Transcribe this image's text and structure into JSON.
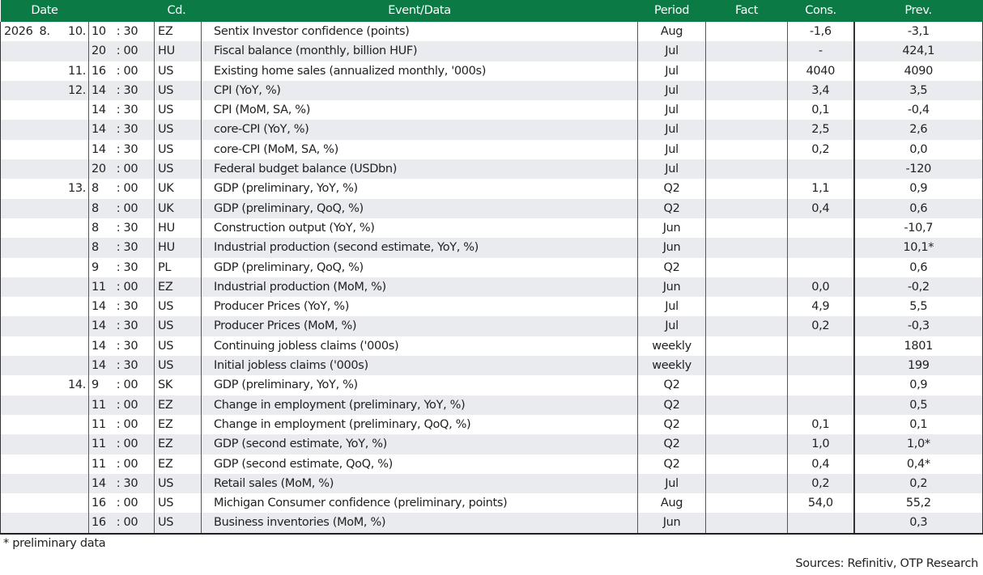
{
  "table": {
    "headers": {
      "date": "Date",
      "code": "Cd.",
      "event": "Event/Data",
      "period": "Period",
      "fact": "Fact",
      "cons": "Cons.",
      "prev": "Prev."
    },
    "rows": [
      {
        "year": "2026",
        "month": "8.",
        "day": "10.",
        "hour": "10",
        "sep": ":",
        "min": "30",
        "code": "EZ",
        "event": "Sentix Investor confidence (points)",
        "period": "Aug",
        "fact": "",
        "cons": "-1,6",
        "prev": "-3,1"
      },
      {
        "year": "",
        "month": "",
        "day": "",
        "hour": "20",
        "sep": ":",
        "min": "00",
        "code": "HU",
        "event": "Fiscal balance (monthly, billion HUF)",
        "period": "Jul",
        "fact": "",
        "cons": "-",
        "prev": "424,1"
      },
      {
        "year": "",
        "month": "",
        "day": "11.",
        "hour": "16",
        "sep": ":",
        "min": "00",
        "code": "US",
        "event": "Existing home sales (annualized monthly, '000s)",
        "period": "Jul",
        "fact": "",
        "cons": "4040",
        "prev": "4090"
      },
      {
        "year": "",
        "month": "",
        "day": "12.",
        "hour": "14",
        "sep": ":",
        "min": "30",
        "code": "US",
        "event": "CPI (YoY, %)",
        "period": "Jul",
        "fact": "",
        "cons": "3,4",
        "prev": "3,5"
      },
      {
        "year": "",
        "month": "",
        "day": "",
        "hour": "14",
        "sep": ":",
        "min": "30",
        "code": "US",
        "event": "CPI (MoM, SA, %)",
        "period": "Jul",
        "fact": "",
        "cons": "0,1",
        "prev": "-0,4"
      },
      {
        "year": "",
        "month": "",
        "day": "",
        "hour": "14",
        "sep": ":",
        "min": "30",
        "code": "US",
        "event": "core-CPI (YoY, %)",
        "period": "Jul",
        "fact": "",
        "cons": "2,5",
        "prev": "2,6"
      },
      {
        "year": "",
        "month": "",
        "day": "",
        "hour": "14",
        "sep": ":",
        "min": "30",
        "code": "US",
        "event": "core-CPI (MoM, SA, %)",
        "period": "Jul",
        "fact": "",
        "cons": "0,2",
        "prev": "0,0"
      },
      {
        "year": "",
        "month": "",
        "day": "",
        "hour": "20",
        "sep": ":",
        "min": "00",
        "code": "US",
        "event": "Federal budget balance (USDbn)",
        "period": "Jul",
        "fact": "",
        "cons": "",
        "prev": "-120"
      },
      {
        "year": "",
        "month": "",
        "day": "13.",
        "hour": "8",
        "sep": ":",
        "min": "00",
        "code": "UK",
        "event": "GDP (preliminary, YoY, %)",
        "period": "Q2",
        "fact": "",
        "cons": "1,1",
        "prev": "0,9"
      },
      {
        "year": "",
        "month": "",
        "day": "",
        "hour": "8",
        "sep": ":",
        "min": "00",
        "code": "UK",
        "event": "GDP (preliminary, QoQ, %)",
        "period": "Q2",
        "fact": "",
        "cons": "0,4",
        "prev": "0,6"
      },
      {
        "year": "",
        "month": "",
        "day": "",
        "hour": "8",
        "sep": ":",
        "min": "30",
        "code": "HU",
        "event": "Construction output (YoY, %)",
        "period": "Jun",
        "fact": "",
        "cons": "",
        "prev": "-10,7"
      },
      {
        "year": "",
        "month": "",
        "day": "",
        "hour": "8",
        "sep": ":",
        "min": "30",
        "code": "HU",
        "event": "Industrial production (second estimate, YoY, %)",
        "period": "Jun",
        "fact": "",
        "cons": "",
        "prev": "10,1*"
      },
      {
        "year": "",
        "month": "",
        "day": "",
        "hour": "9",
        "sep": ":",
        "min": "30",
        "code": "PL",
        "event": "GDP (preliminary, QoQ, %)",
        "period": "Q2",
        "fact": "",
        "cons": "",
        "prev": "0,6"
      },
      {
        "year": "",
        "month": "",
        "day": "",
        "hour": "11",
        "sep": ":",
        "min": "00",
        "code": "EZ",
        "event": "Industrial production (MoM, %)",
        "period": "Jun",
        "fact": "",
        "cons": "0,0",
        "prev": "-0,2"
      },
      {
        "year": "",
        "month": "",
        "day": "",
        "hour": "14",
        "sep": ":",
        "min": "30",
        "code": "US",
        "event": "Producer Prices (YoY, %)",
        "period": "Jul",
        "fact": "",
        "cons": "4,9",
        "prev": "5,5"
      },
      {
        "year": "",
        "month": "",
        "day": "",
        "hour": "14",
        "sep": ":",
        "min": "30",
        "code": "US",
        "event": "Producer Prices (MoM, %)",
        "period": "Jul",
        "fact": "",
        "cons": "0,2",
        "prev": "-0,3"
      },
      {
        "year": "",
        "month": "",
        "day": "",
        "hour": "14",
        "sep": ":",
        "min": "30",
        "code": "US",
        "event": "Continuing jobless claims ('000s)",
        "period": "weekly",
        "fact": "",
        "cons": "",
        "prev": "1801"
      },
      {
        "year": "",
        "month": "",
        "day": "",
        "hour": "14",
        "sep": ":",
        "min": "30",
        "code": "US",
        "event": "Initial jobless claims ('000s)",
        "period": "weekly",
        "fact": "",
        "cons": "",
        "prev": "199"
      },
      {
        "year": "",
        "month": "",
        "day": "14.",
        "hour": "9",
        "sep": ":",
        "min": "00",
        "code": "SK",
        "event": "GDP (preliminary, YoY, %)",
        "period": "Q2",
        "fact": "",
        "cons": "",
        "prev": "0,9"
      },
      {
        "year": "",
        "month": "",
        "day": "",
        "hour": "11",
        "sep": ":",
        "min": "00",
        "code": "EZ",
        "event": "Change in employment (preliminary, YoY, %)",
        "period": "Q2",
        "fact": "",
        "cons": "",
        "prev": "0,5"
      },
      {
        "year": "",
        "month": "",
        "day": "",
        "hour": "11",
        "sep": ":",
        "min": "00",
        "code": "EZ",
        "event": "Change in employment (preliminary, QoQ, %)",
        "period": "Q2",
        "fact": "",
        "cons": "0,1",
        "prev": "0,1"
      },
      {
        "year": "",
        "month": "",
        "day": "",
        "hour": "11",
        "sep": ":",
        "min": "00",
        "code": "EZ",
        "event": "GDP (second estimate, YoY, %)",
        "period": "Q2",
        "fact": "",
        "cons": "1,0",
        "prev": "1,0*"
      },
      {
        "year": "",
        "month": "",
        "day": "",
        "hour": "11",
        "sep": ":",
        "min": "00",
        "code": "EZ",
        "event": "GDP (second estimate, QoQ, %)",
        "period": "Q2",
        "fact": "",
        "cons": "0,4",
        "prev": "0,4*"
      },
      {
        "year": "",
        "month": "",
        "day": "",
        "hour": "14",
        "sep": ":",
        "min": "30",
        "code": "US",
        "event": "Retail sales (MoM, %)",
        "period": "Jul",
        "fact": "",
        "cons": "0,2",
        "prev": "0,2"
      },
      {
        "year": "",
        "month": "",
        "day": "",
        "hour": "16",
        "sep": ":",
        "min": "00",
        "code": "US",
        "event": "Michigan Consumer confidence (preliminary, points)",
        "period": "Aug",
        "fact": "",
        "cons": "54,0",
        "prev": "55,2"
      },
      {
        "year": "",
        "month": "",
        "day": "",
        "hour": "16",
        "sep": ":",
        "min": "00",
        "code": "US",
        "event": "Business inventories (MoM, %)",
        "period": "Jun",
        "fact": "",
        "cons": "",
        "prev": "0,3"
      }
    ]
  },
  "footnote": "* preliminary data",
  "sources": "Sources: Refinitiv, OTP Research"
}
